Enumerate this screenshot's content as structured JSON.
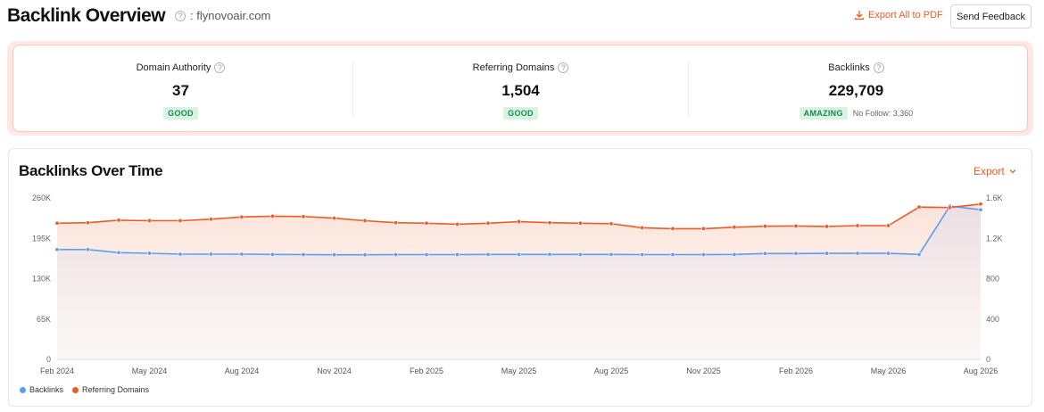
{
  "header": {
    "title": "Backlink Overview",
    "domain": ": flynovoair.com",
    "export_pdf_label": "Export All to PDF",
    "feedback_label": "Send Feedback",
    "help_glyph": "?"
  },
  "metrics": [
    {
      "label": "Domain Authority",
      "value": "37",
      "badge": "GOOD",
      "extra": ""
    },
    {
      "label": "Referring Domains",
      "value": "1,504",
      "badge": "GOOD",
      "extra": ""
    },
    {
      "label": "Backlinks",
      "value": "229,709",
      "badge": "AMAZING",
      "extra": "No Follow: 3,360"
    }
  ],
  "chart_section": {
    "title": "Backlinks Over Time",
    "export_label": "Export"
  },
  "chart_data": {
    "type": "line",
    "title": "Backlinks Over Time",
    "x": [
      "2024-02",
      "2024-03",
      "2024-04",
      "2024-05",
      "2024-06",
      "2024-07",
      "2024-08",
      "2024-09",
      "2024-10",
      "2024-11",
      "2024-12",
      "2025-01",
      "2025-02",
      "2025-03",
      "2025-04",
      "2025-05",
      "2025-06",
      "2025-07",
      "2025-08",
      "2025-09",
      "2025-10",
      "2025-11",
      "2025-12",
      "2026-01",
      "2026-02",
      "2026-03",
      "2026-04",
      "2026-05",
      "2026-06",
      "2026-07",
      "2026-08"
    ],
    "x_tick_labels": [
      "Feb 2024",
      "May 2024",
      "Aug 2024",
      "Nov 2024",
      "Feb 2025",
      "May 2025",
      "Aug 2025",
      "Nov 2025",
      "Feb 2026",
      "May 2026",
      "Aug 2026"
    ],
    "left_axis_ticks": [
      "260K",
      "195K",
      "130K",
      "65K",
      "0"
    ],
    "right_axis_ticks": [
      "1.6K",
      "1.2K",
      "800",
      "400",
      "0"
    ],
    "left_ylim": [
      0,
      260000
    ],
    "right_ylim": [
      0,
      1600
    ],
    "grid": false,
    "legend_position": "bottom-left",
    "series": [
      {
        "name": "Backlinks",
        "axis": "left",
        "color": "#5b9ef0",
        "values": [
          177000,
          177000,
          172000,
          171000,
          169500,
          169500,
          169500,
          169000,
          168800,
          168500,
          168500,
          168800,
          168800,
          168800,
          169000,
          169000,
          169000,
          169000,
          169000,
          168800,
          168800,
          168800,
          169000,
          170500,
          170500,
          170800,
          170800,
          170800,
          169000,
          247000,
          241000
        ]
      },
      {
        "name": "Referring Domains",
        "axis": "right",
        "color": "#f15a24",
        "values": [
          1350,
          1355,
          1380,
          1375,
          1375,
          1390,
          1412,
          1420,
          1416,
          1400,
          1375,
          1355,
          1350,
          1340,
          1350,
          1365,
          1355,
          1350,
          1345,
          1305,
          1296,
          1296,
          1310,
          1320,
          1322,
          1318,
          1326,
          1326,
          1510,
          1505,
          1540
        ]
      }
    ]
  },
  "colors": {
    "accent": "#f15a24",
    "backlinks": "#5b9ef0",
    "referring": "#f15a24",
    "badge_bg": "#d8f3e3",
    "badge_text": "#1a8a4a"
  }
}
